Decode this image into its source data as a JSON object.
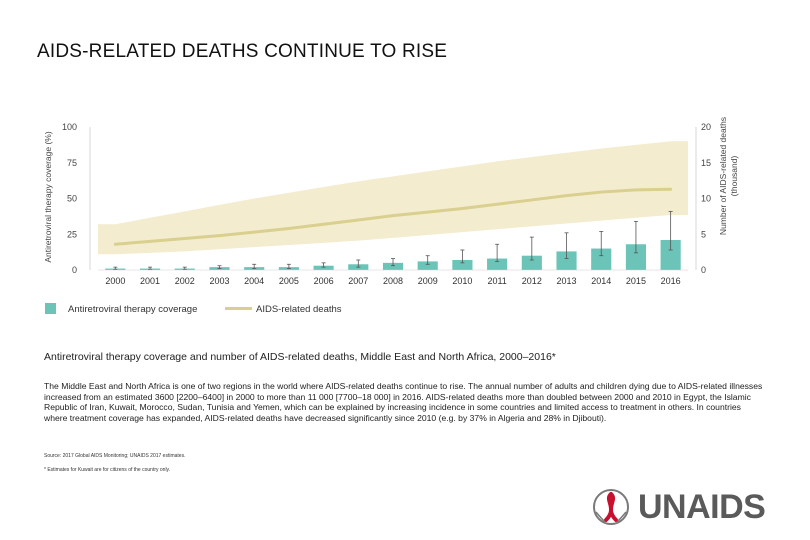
{
  "page": {
    "title": "AIDS-RELATED DEATHS CONTINUE TO RISE",
    "caption": "Antiretroviral therapy coverage and number of AIDS-related deaths, Middle East and North Africa, 2000–2016*",
    "body": "The Middle East and North Africa is one of two regions in the world where AIDS-related deaths continue to rise. The annual number of adults and children dying due to AIDS-related illnesses increased from an estimated 3600 [2200–6400] in 2000 to more than 11 000 [7700–18 000] in 2016. AIDS-related deaths more than doubled between 2000 and 2010 in Egypt, the Islamic Republic of Iran, Kuwait, Morocco, Sudan, Tunisia and Yemen, which can be explained by increasing incidence in some countries and limited access to treatment in others. In countries where treatment coverage has expanded, AIDS-related deaths have decreased significantly since 2010 (e.g. by 37% in Algeria and 28% in Djibouti).",
    "source": "Source: 2017 Global AIDS Monitoring; UNAIDS 2017 estimates.",
    "footnote": "* Estimates for Kuwait are for citizens of the country only.",
    "logo_text": "UNAIDS"
  },
  "colors": {
    "bar": "#6cc3b7",
    "line": "#d9cf8e",
    "band": "#f4eccf",
    "error": "#555555"
  },
  "chart_data": {
    "type": "bar",
    "title": "",
    "categories": [
      "2000",
      "2001",
      "2002",
      "2003",
      "2004",
      "2005",
      "2006",
      "2007",
      "2008",
      "2009",
      "2010",
      "2011",
      "2012",
      "2013",
      "2014",
      "2015",
      "2016"
    ],
    "left_axis": {
      "label": "Antiretroviral therapy coverage (%)",
      "ylim": [
        0,
        100
      ],
      "ticks": [
        0,
        25,
        50,
        75,
        100
      ]
    },
    "right_axis": {
      "label_line1": "Number of AIDS-related deaths",
      "label_line2": "(thousand)",
      "ylim": [
        0,
        20
      ],
      "ticks": [
        0,
        5,
        10,
        15,
        20
      ]
    },
    "series": [
      {
        "name": "Antiretroviral therapy coverage",
        "type": "bar",
        "axis": "left",
        "values": [
          1,
          1,
          1,
          2,
          2,
          2,
          3,
          4,
          5,
          6,
          7,
          8,
          10,
          13,
          15,
          18,
          21
        ],
        "err_low": [
          0.5,
          0.5,
          0.5,
          1,
          1,
          1,
          2,
          2,
          3,
          4,
          5,
          6,
          7,
          8,
          10,
          12,
          14
        ],
        "err_high": [
          2,
          2,
          2,
          3,
          4,
          4,
          5,
          7,
          8,
          10,
          14,
          18,
          23,
          26,
          27,
          34,
          41
        ]
      },
      {
        "name": "AIDS-related deaths",
        "type": "line",
        "axis": "right",
        "values": [
          3.6,
          4.0,
          4.4,
          4.8,
          5.3,
          5.8,
          6.4,
          7.0,
          7.6,
          8.1,
          8.6,
          9.2,
          9.8,
          10.4,
          10.9,
          11.2,
          11.3
        ],
        "band_low": [
          2.2,
          2.4,
          2.6,
          2.9,
          3.2,
          3.5,
          3.8,
          4.1,
          4.5,
          4.9,
          5.3,
          5.7,
          6.1,
          6.5,
          6.9,
          7.3,
          7.7
        ],
        "band_high": [
          6.4,
          7.3,
          8.2,
          9.1,
          10.0,
          10.8,
          11.6,
          12.4,
          13.1,
          13.8,
          14.5,
          15.2,
          15.8,
          16.4,
          17.0,
          17.5,
          18.0
        ]
      }
    ],
    "legend": {
      "position": "bottom-left",
      "items": [
        "Antiretroviral therapy coverage",
        "AIDS-related deaths"
      ]
    }
  }
}
